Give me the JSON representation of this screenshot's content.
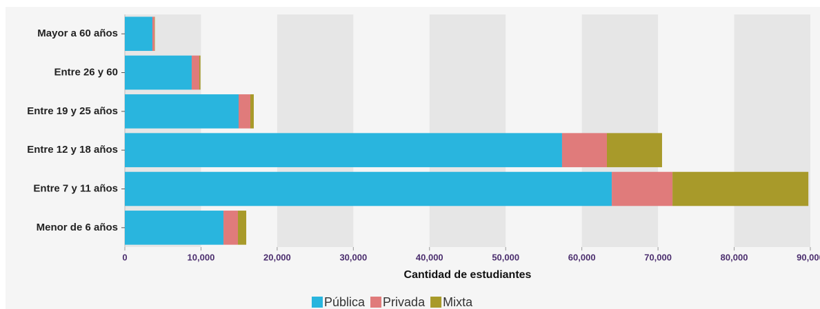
{
  "chart_data": {
    "type": "hbar-stacked",
    "xlabel": "Cantidad de estudiantes",
    "categories": [
      "Mayor a 60 años",
      "Entre 26 y 60",
      "Entre 19 y 25 años",
      "Entre 12 y 18 años",
      "Entre 7 y 11 años",
      "Menor de 6 años"
    ],
    "series": [
      {
        "name": "Pública",
        "color": "#29b5de",
        "values": [
          3620,
          8780,
          14940,
          57400,
          63930,
          12950
        ]
      },
      {
        "name": "Privada",
        "color": "#e07b7b",
        "values": [
          270,
          1000,
          1540,
          5890,
          7970,
          1900
        ]
      },
      {
        "name": "Mixta",
        "color": "#a89a2a",
        "values": [
          50,
          150,
          450,
          7240,
          17840,
          1090
        ]
      }
    ],
    "xlim": [
      0,
      90000
    ],
    "xticks": [
      0,
      {
        "value": 10000,
        "label": "10,000"
      },
      {
        "value": 20000,
        "label": "20,000"
      },
      {
        "value": 30000,
        "label": "30,000"
      },
      {
        "value": 40000,
        "label": "40,000"
      },
      {
        "value": 50000,
        "label": "50,000"
      },
      {
        "value": 60000,
        "label": "60,000"
      },
      {
        "value": 70000,
        "label": "70,000"
      },
      {
        "value": 80000,
        "label": "80,000"
      },
      {
        "value": 90000,
        "label": "90,000"
      }
    ],
    "legend": "bottom"
  }
}
